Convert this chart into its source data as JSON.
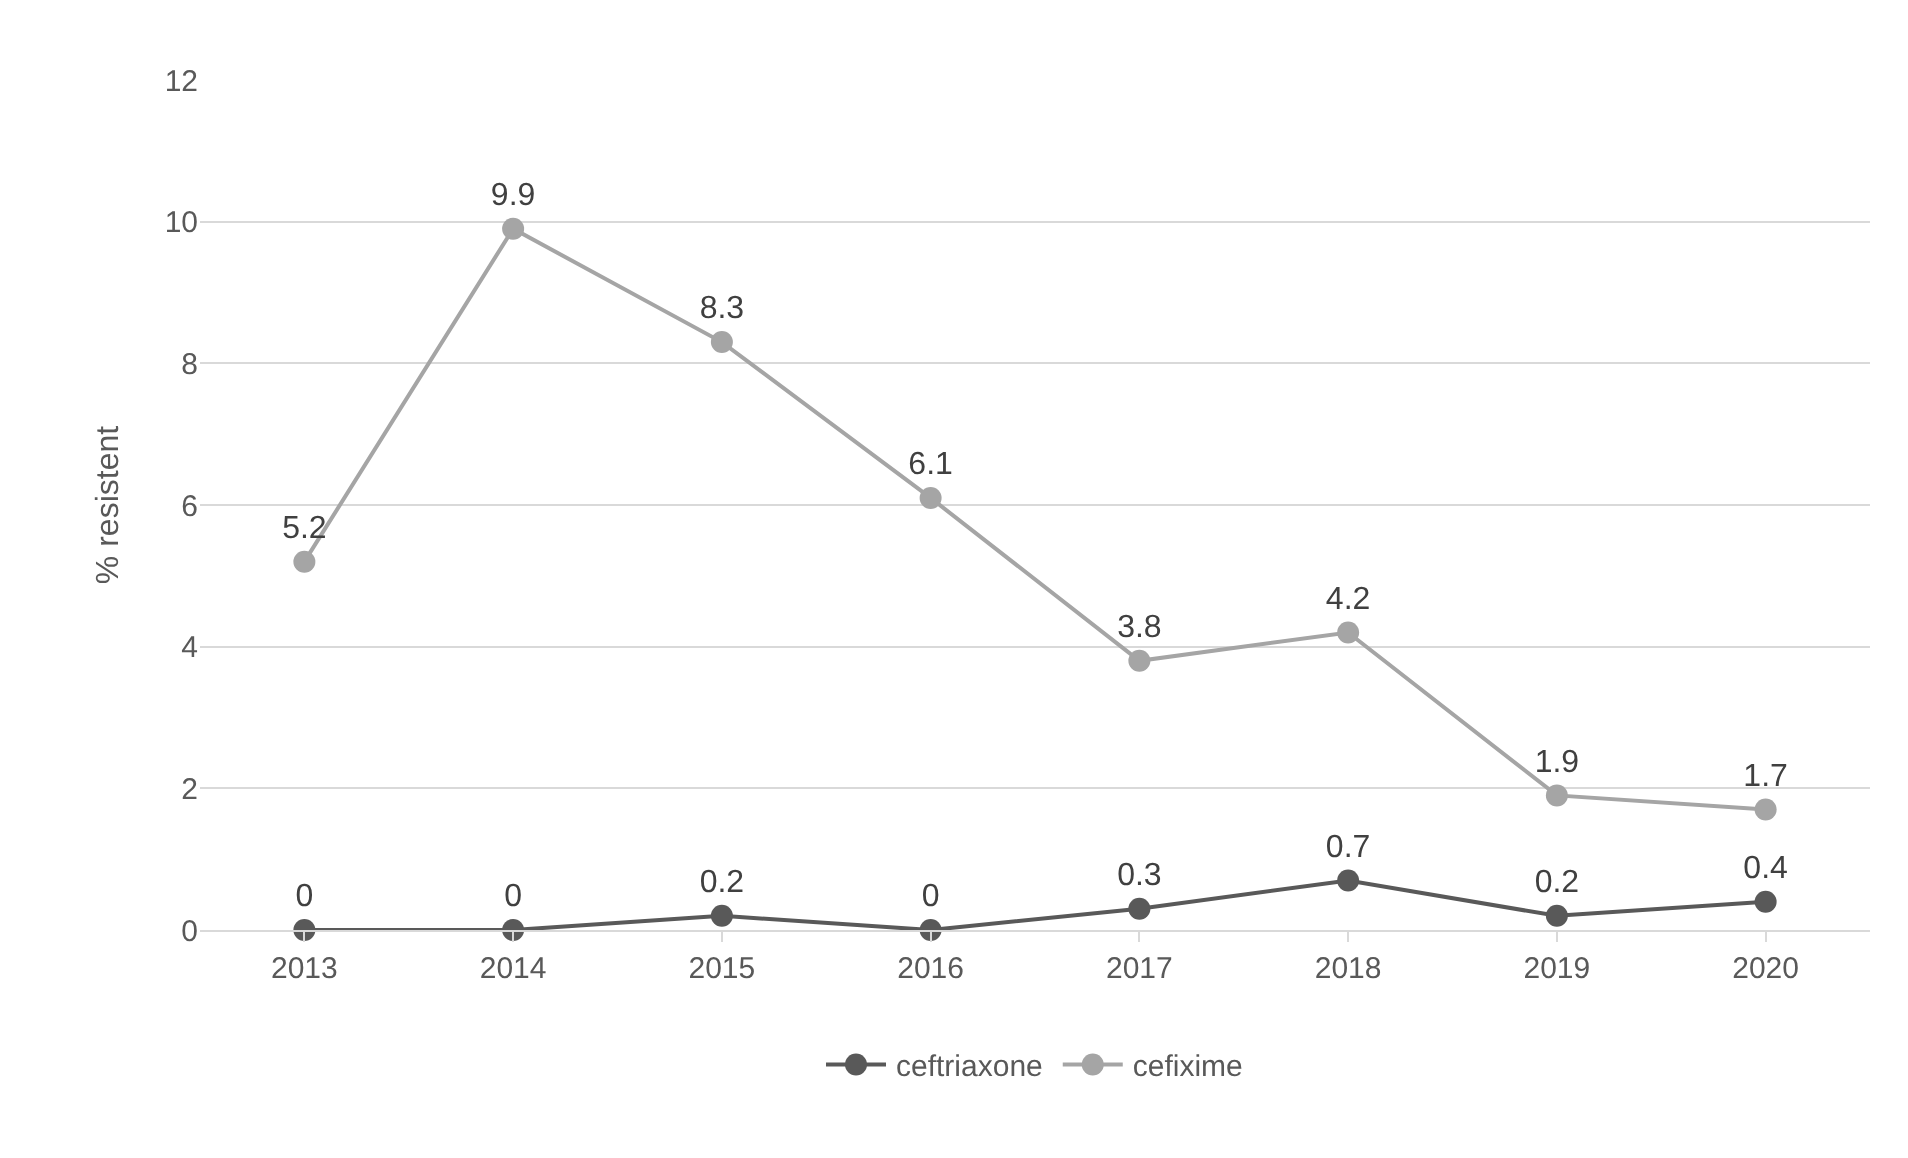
{
  "chart_data": {
    "type": "line",
    "ylabel": "% resistent",
    "categories": [
      "2013",
      "2014",
      "2015",
      "2016",
      "2017",
      "2018",
      "2019",
      "2020"
    ],
    "series": [
      {
        "name": "ceftriaxone",
        "color": "#595959",
        "values": [
          0,
          0,
          0.2,
          0,
          0.3,
          0.7,
          0.2,
          0.4
        ]
      },
      {
        "name": "cefixime",
        "color": "#a5a5a5",
        "values": [
          5.2,
          9.9,
          8.3,
          6.1,
          3.8,
          4.2,
          1.9,
          1.7
        ]
      }
    ],
    "ylim": [
      0,
      12
    ],
    "yticks": [
      0,
      2,
      4,
      6,
      8,
      10,
      12
    ],
    "grid": "y",
    "legend": "bottom",
    "marker": "circle",
    "line_style": "solid",
    "data_labels": true
  }
}
